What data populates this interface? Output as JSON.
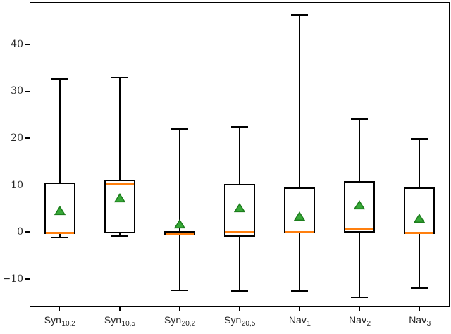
{
  "chart_data": {
    "type": "boxplot",
    "title": "",
    "xlabel": "",
    "ylabel": "",
    "ylim": [
      -15.9,
      49.0
    ],
    "yticks": [
      -10,
      0,
      10,
      20,
      30,
      40
    ],
    "grid": false,
    "legend": null,
    "boxes": [
      {
        "label_base": "Syn",
        "label_sub": "10,2",
        "whislo": -1.2,
        "q1": -0.5,
        "med": -0.2,
        "q3": 10.5,
        "whishi": 32.6,
        "mean": 4.6
      },
      {
        "label_base": "Syn",
        "label_sub": "10,5",
        "whislo": -0.9,
        "q1": -0.3,
        "med": 10.2,
        "q3": 11.2,
        "whishi": 32.9,
        "mean": 7.2
      },
      {
        "label_base": "Syn",
        "label_sub": "20,2",
        "whislo": -12.4,
        "q1": -0.7,
        "med": -0.3,
        "q3": 0.2,
        "whishi": 22.0,
        "mean": 1.7
      },
      {
        "label_base": "Syn",
        "label_sub": "20,5",
        "whislo": -12.6,
        "q1": -1.0,
        "med": -0.1,
        "q3": 10.2,
        "whishi": 22.4,
        "mean": 5.2
      },
      {
        "label_base": "Nav",
        "label_sub": "1",
        "whislo": -12.6,
        "q1": -0.3,
        "med": -0.1,
        "q3": 9.5,
        "whishi": 46.3,
        "mean": 3.3
      },
      {
        "label_base": "Nav",
        "label_sub": "2",
        "whislo": -14.0,
        "q1": -0.2,
        "med": 0.5,
        "q3": 10.8,
        "whishi": 24.0,
        "mean": 5.7
      },
      {
        "label_base": "Nav",
        "label_sub": "3",
        "whislo": -12.0,
        "q1": -0.4,
        "med": -0.2,
        "q3": 9.5,
        "whishi": 19.8,
        "mean": 2.9
      }
    ],
    "colors": {
      "median": "#ff7f0e",
      "mean_fill": "#37a837",
      "mean_edge": "#1e7e1e",
      "line": "#000000",
      "background": "#ffffff",
      "tick_label": "#262626"
    }
  }
}
